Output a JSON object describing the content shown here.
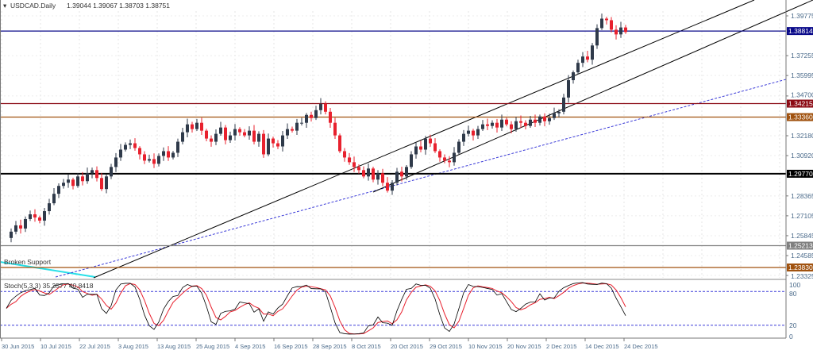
{
  "header": {
    "symbol": "USDCAD.Daily",
    "ohlc": "1.39044 1.39067 1.38703 1.38751"
  },
  "indicator": {
    "label": "Stoch(5,3,3) 35.3577 40.8418",
    "levels": [
      "100",
      "80",
      "20",
      "0"
    ]
  },
  "annotation": {
    "broken_support": "Broken Support"
  },
  "colors": {
    "bull": "#2f3a4a",
    "bear": "#e8212e",
    "stoch_main": "#000000",
    "stoch_signal": "#e8212e",
    "channel": "#000000",
    "dashed_trend": "#3a3ad8",
    "broken_support": "#29e0e8"
  },
  "chart_data": {
    "type": "candlestick",
    "title": "USDCAD.Daily",
    "ylim": [
      1.232,
      1.405
    ],
    "y_ticks": [
      "1.39775",
      "1.37255",
      "1.35995",
      "1.34700",
      "1.32180",
      "1.30920",
      "1.28365",
      "1.27105",
      "1.25845",
      "1.24585",
      "1.23325"
    ],
    "x_ticks": [
      "30 Jun 2015",
      "10 Jul 2015",
      "22 Jul 2015",
      "3 Aug 2015",
      "13 Aug 2015",
      "25 Aug 2015",
      "4 Sep 2015",
      "16 Sep 2015",
      "28 Sep 2015",
      "8 Oct 2015",
      "20 Oct 2015",
      "29 Oct 2015",
      "10 Nov 2015",
      "20 Nov 2015",
      "2 Dec 2015",
      "14 Dec 2015",
      "24 Dec 2015"
    ],
    "horizontal_levels": [
      {
        "value": "1.38814",
        "color": "#0a0a8a"
      },
      {
        "value": "1.34215",
        "color": "#8b0a14"
      },
      {
        "value": "1.33360",
        "color": "#a0520f"
      },
      {
        "value": "1.29770",
        "color": "#000000"
      },
      {
        "value": "1.25213",
        "color": "#808080"
      },
      {
        "value": "1.23830",
        "color": "#a0520f"
      }
    ],
    "closes": [
      1.257,
      1.261,
      1.265,
      1.263,
      1.269,
      1.272,
      1.27,
      1.268,
      1.274,
      1.279,
      1.285,
      1.29,
      1.292,
      1.294,
      1.29,
      1.296,
      1.293,
      1.298,
      1.3,
      1.295,
      1.288,
      1.296,
      1.302,
      1.308,
      1.313,
      1.316,
      1.317,
      1.314,
      1.31,
      1.306,
      1.307,
      1.304,
      1.309,
      1.312,
      1.308,
      1.311,
      1.318,
      1.324,
      1.329,
      1.326,
      1.33,
      1.325,
      1.32,
      1.318,
      1.323,
      1.327,
      1.319,
      1.322,
      1.326,
      1.324,
      1.322,
      1.325,
      1.318,
      1.323,
      1.31,
      1.32,
      1.317,
      1.315,
      1.322,
      1.326,
      1.325,
      1.33,
      1.33,
      1.335,
      1.333,
      1.338,
      1.342,
      1.337,
      1.33,
      1.322,
      1.312,
      1.308,
      1.305,
      1.302,
      1.3,
      1.296,
      1.301,
      1.294,
      1.298,
      1.292,
      1.287,
      1.292,
      1.299,
      1.296,
      1.302,
      1.31,
      1.315,
      1.313,
      1.32,
      1.317,
      1.312,
      1.308,
      1.306,
      1.305,
      1.311,
      1.318,
      1.323,
      1.325,
      1.322,
      1.326,
      1.329,
      1.328,
      1.33,
      1.327,
      1.332,
      1.329,
      1.326,
      1.331,
      1.33,
      1.328,
      1.332,
      1.33,
      1.334,
      1.331,
      1.333,
      1.336,
      1.337,
      1.346,
      1.357,
      1.362,
      1.368,
      1.372,
      1.37,
      1.379,
      1.39,
      1.396,
      1.395,
      1.389,
      1.386,
      1.3904,
      1.38751
    ]
  }
}
